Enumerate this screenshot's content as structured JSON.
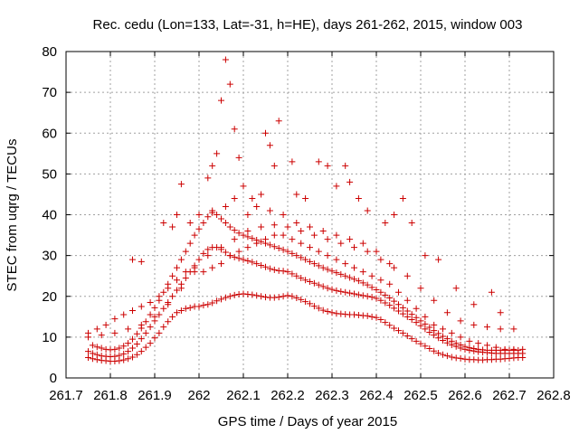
{
  "chart_data": {
    "type": "scatter",
    "title": "Rec. cedu (Lon=133, Lat=-31, h=HE), days 261-262, 2015, window 003",
    "xlabel": "GPS time / Days of year 2015",
    "ylabel": "STEC from uqrg / TECUs",
    "xlim": [
      261.7,
      262.8
    ],
    "ylim": [
      0,
      80
    ],
    "xticks": [
      "261.7",
      "261.8",
      "261.9",
      "262",
      "262.1",
      "262.2",
      "262.3",
      "262.4",
      "262.5",
      "262.6",
      "262.7",
      "262.8"
    ],
    "yticks": [
      "0",
      "10",
      "20",
      "30",
      "40",
      "50",
      "60",
      "70",
      "80"
    ],
    "grid": true,
    "marker": "plus",
    "color": "#cc0000",
    "series": [
      {
        "x": [
          261.75,
          261.76,
          261.77,
          261.78,
          261.79,
          261.8,
          261.81,
          261.82,
          261.83,
          261.84,
          261.85,
          261.86,
          261.87,
          261.88,
          261.89,
          261.9,
          261.91,
          261.92,
          261.93,
          261.94,
          261.95,
          261.96,
          261.97,
          261.98,
          261.99,
          262.0,
          262.01,
          262.02,
          262.03,
          262.04,
          262.05,
          262.06,
          262.07,
          262.08,
          262.09,
          262.1,
          262.11,
          262.12,
          262.13,
          262.14,
          262.15,
          262.16,
          262.17,
          262.18,
          262.19,
          262.2,
          262.21,
          262.22,
          262.23,
          262.24,
          262.25,
          262.26,
          262.27,
          262.28,
          262.29,
          262.3,
          262.31,
          262.32,
          262.33,
          262.34,
          262.35,
          262.36,
          262.37,
          262.38,
          262.39,
          262.4,
          262.41,
          262.42,
          262.43,
          262.44,
          262.45,
          262.46,
          262.47,
          262.48,
          262.49,
          262.5,
          262.51,
          262.52,
          262.53,
          262.54,
          262.55,
          262.56,
          262.57,
          262.58,
          262.59,
          262.6,
          262.61,
          262.62,
          262.63,
          262.64,
          262.65,
          262.66,
          262.67,
          262.68,
          262.69,
          262.7,
          262.71,
          262.72,
          262.73
        ],
        "y": [
          5,
          4.7,
          4.5,
          4.3,
          4.2,
          4.1,
          4.1,
          4.2,
          4.4,
          4.7,
          5.1,
          5.7,
          6.5,
          7.5,
          8.5,
          9.8,
          11,
          12.5,
          13.8,
          15,
          16,
          16.5,
          17,
          17.2,
          17.5,
          17.5,
          17.8,
          18,
          18.4,
          18.9,
          19.3,
          19.7,
          20,
          20.3,
          20.5,
          20.6,
          20.5,
          20.4,
          20.2,
          20,
          19.8,
          19.7,
          19.7,
          19.8,
          20,
          20.2,
          20,
          19.6,
          19.2,
          18.7,
          18.2,
          17.6,
          17.1,
          16.6,
          16.3,
          16,
          15.8,
          15.7,
          15.6,
          15.5,
          15.5,
          15.4,
          15.3,
          15.2,
          15,
          14.8,
          14.3,
          13.6,
          12.9,
          12.2,
          11.6,
          11,
          10.3,
          9.6,
          9,
          8.4,
          7.8,
          7.2,
          6.6,
          6.1,
          5.7,
          5.4,
          5.1,
          4.9,
          4.8,
          4.6,
          4.5,
          4.5,
          4.4,
          4.4,
          4.5,
          4.5,
          4.6,
          4.6,
          4.7,
          4.8,
          4.9,
          5,
          5
        ]
      },
      {
        "x": [
          261.75,
          261.76,
          261.77,
          261.78,
          261.79,
          261.8,
          261.81,
          261.82,
          261.83,
          261.84,
          261.85,
          261.86,
          261.87,
          261.88,
          261.89,
          261.9,
          261.91,
          261.92,
          261.93,
          261.94,
          261.95,
          261.96,
          261.97,
          261.98,
          261.99,
          262.0,
          262.01,
          262.02,
          262.03,
          262.04,
          262.05,
          262.06,
          262.07,
          262.08,
          262.09,
          262.1,
          262.11,
          262.12,
          262.13,
          262.14,
          262.15,
          262.16,
          262.17,
          262.18,
          262.19,
          262.2,
          262.21,
          262.22,
          262.23,
          262.24,
          262.25,
          262.26,
          262.27,
          262.28,
          262.29,
          262.3,
          262.31,
          262.32,
          262.33,
          262.34,
          262.35,
          262.36,
          262.37,
          262.38,
          262.39,
          262.4,
          262.41,
          262.42,
          262.43,
          262.44,
          262.45,
          262.46,
          262.47,
          262.48,
          262.49,
          262.5,
          262.51,
          262.52,
          262.53,
          262.54,
          262.55,
          262.56,
          262.57,
          262.58,
          262.59,
          262.6,
          262.61,
          262.62,
          262.63,
          262.64,
          262.65,
          262.66,
          262.67,
          262.68,
          262.69,
          262.7,
          262.71,
          262.72,
          262.73
        ],
        "y": [
          6.5,
          6,
          5.7,
          5.4,
          5.3,
          5.2,
          5.3,
          5.5,
          5.9,
          6.5,
          7.3,
          8.3,
          9.6,
          11,
          12.5,
          14,
          15.5,
          17,
          18.5,
          20,
          21.5,
          23,
          24.5,
          26,
          27.5,
          29,
          30.5,
          31.5,
          32,
          32,
          31.5,
          30.8,
          30,
          29.6,
          29.3,
          29,
          28.7,
          28.4,
          28,
          27.6,
          27.2,
          26.8,
          26.5,
          26.3,
          26.2,
          26,
          25.5,
          25,
          24.5,
          24,
          23.6,
          23.2,
          22.8,
          22.4,
          22,
          21.7,
          21.4,
          21.2,
          21,
          20.8,
          20.6,
          20.4,
          20.2,
          20,
          19.8,
          19.5,
          19,
          18.4,
          17.8,
          17.1,
          16.4,
          15.7,
          15,
          14.3,
          13.6,
          12.8,
          12,
          11.2,
          10.5,
          9.8,
          9.2,
          8.6,
          8.1,
          7.7,
          7.3,
          7,
          6.8,
          6.6,
          6.4,
          6.3,
          6.2,
          6.1,
          6,
          6,
          6,
          6,
          6,
          6,
          6
        ]
      },
      {
        "x": [
          261.76,
          261.77,
          261.78,
          261.79,
          261.8,
          261.81,
          261.82,
          261.83,
          261.84,
          261.85,
          261.86,
          261.87,
          261.88,
          261.89,
          261.9,
          261.91,
          261.92,
          261.93,
          261.94,
          261.95,
          261.96,
          261.97,
          261.98,
          261.99,
          262.0,
          262.01,
          262.02,
          262.03,
          262.04,
          262.05,
          262.06,
          262.07,
          262.08,
          262.09,
          262.1,
          262.11,
          262.12,
          262.13,
          262.14,
          262.15,
          262.16,
          262.17,
          262.18,
          262.19,
          262.2,
          262.21,
          262.22,
          262.23,
          262.24,
          262.25,
          262.26,
          262.27,
          262.28,
          262.29,
          262.3,
          262.31,
          262.32,
          262.33,
          262.34,
          262.35,
          262.36,
          262.37,
          262.38,
          262.39,
          262.4,
          262.41,
          262.42,
          262.43,
          262.44,
          262.45,
          262.46,
          262.47,
          262.48,
          262.49,
          262.5,
          262.51,
          262.52,
          262.53,
          262.54,
          262.55,
          262.56,
          262.57,
          262.58,
          262.59,
          262.6,
          262.61,
          262.62,
          262.63,
          262.64,
          262.65,
          262.66,
          262.67,
          262.68,
          262.69,
          262.7,
          262.71,
          262.72
        ],
        "y": [
          8,
          7.6,
          7.3,
          7,
          6.9,
          7,
          7.3,
          7.8,
          8.5,
          9.5,
          10.8,
          12.2,
          13.8,
          15.5,
          17.2,
          19,
          21,
          23,
          25,
          27,
          29,
          31,
          33,
          35,
          36.5,
          38,
          39.5,
          40.5,
          40,
          39,
          38,
          37,
          36.2,
          35.5,
          35,
          34.6,
          34.2,
          33.8,
          33.4,
          33,
          32.6,
          32.2,
          31.8,
          31.4,
          31,
          30.5,
          30,
          29.5,
          29,
          28.5,
          28,
          27.5,
          27,
          26.6,
          26.2,
          25.8,
          25.4,
          25,
          24.6,
          24.2,
          23.8,
          23.3,
          22.8,
          22.2,
          21.6,
          21,
          20.3,
          19.6,
          18.8,
          18,
          17.2,
          16.4,
          15.6,
          14.8,
          14,
          13.2,
          12.4,
          11.6,
          10.9,
          10.2,
          9.6,
          9,
          8.5,
          8.1,
          7.7,
          7.4,
          7.2,
          7,
          6.9,
          6.8,
          6.8,
          6.8,
          6.8,
          6.8,
          6.8,
          6.8,
          6.8
        ]
      },
      {
        "x": [
          261.75,
          261.77,
          261.79,
          261.81,
          261.83,
          261.85,
          261.87,
          261.89,
          261.91,
          261.93,
          261.95,
          261.97,
          261.99,
          262.01,
          262.03,
          262.05,
          262.07,
          262.09,
          262.11,
          262.13,
          262.15,
          262.17,
          262.19,
          262.21,
          262.23,
          262.25,
          262.27,
          262.29,
          262.31,
          262.33,
          262.35,
          262.37,
          262.39,
          262.41,
          262.43,
          262.45,
          262.47,
          262.49,
          262.51,
          262.53,
          262.55,
          262.57,
          262.59,
          262.61,
          262.63,
          262.65,
          262.67,
          262.69,
          262.71,
          262.73
        ],
        "y": [
          11,
          12,
          13,
          14.5,
          15.5,
          16.5,
          17.5,
          18.5,
          20,
          22,
          24,
          26,
          27,
          26,
          27,
          28,
          30,
          31,
          32,
          33,
          34,
          35,
          35,
          34,
          33,
          32,
          31,
          30,
          29,
          28,
          27,
          26,
          25,
          24,
          23,
          21,
          19,
          17,
          15,
          13,
          12,
          11,
          10,
          9,
          8.5,
          8,
          7.5,
          7,
          7,
          7
        ]
      },
      {
        "x": [
          261.75,
          261.78,
          261.81,
          261.84,
          261.87,
          261.9,
          261.93,
          261.96,
          261.99,
          262.02,
          262.05,
          262.08,
          262.11,
          262.14,
          262.17,
          262.2,
          262.23,
          262.26,
          262.29,
          262.32,
          262.35,
          262.38,
          262.41,
          262.44,
          262.47,
          262.5,
          262.53,
          262.56,
          262.59,
          262.62,
          262.65,
          262.68,
          262.71
        ],
        "y": [
          10,
          10.5,
          11,
          12,
          13,
          15,
          18,
          22,
          26,
          30,
          32,
          34,
          36,
          37,
          37.5,
          37,
          36,
          35,
          34,
          33,
          32,
          31,
          29,
          27,
          25,
          22,
          19,
          16,
          14,
          13,
          12.5,
          12,
          12
        ]
      },
      {
        "x": [
          261.85,
          261.87,
          261.92,
          261.94,
          261.95,
          261.96,
          262.02,
          262.03,
          262.04,
          262.05,
          262.06,
          262.07,
          262.08,
          262.09,
          262.1,
          262.12,
          262.14,
          262.15,
          262.16,
          262.17,
          262.18,
          262.21,
          262.22,
          262.24,
          262.27,
          262.29,
          262.31,
          262.33,
          262.34,
          262.36,
          262.38,
          262.42,
          262.44,
          262.46,
          262.48,
          262.51,
          262.54,
          262.58,
          262.62,
          262.66,
          262.68
        ],
        "y": [
          29,
          28.5,
          38,
          37,
          40,
          47.5,
          49,
          52,
          55,
          68,
          78,
          72,
          61,
          54,
          47,
          44,
          45,
          60,
          57,
          52,
          63,
          53,
          45,
          44,
          53,
          52,
          47,
          52,
          48,
          44,
          41,
          38,
          40,
          44,
          38,
          30,
          29,
          22,
          18,
          21,
          16
        ]
      },
      {
        "x": [
          261.98,
          262.0,
          262.03,
          262.06,
          262.08,
          262.11,
          262.13,
          262.16,
          262.19,
          262.22,
          262.25,
          262.28,
          262.31,
          262.34,
          262.37,
          262.4,
          262.43
        ],
        "y": [
          38,
          40,
          41,
          42,
          44,
          40,
          42,
          41,
          40,
          38,
          37,
          36,
          35,
          34,
          33,
          31,
          28
        ]
      }
    ]
  }
}
